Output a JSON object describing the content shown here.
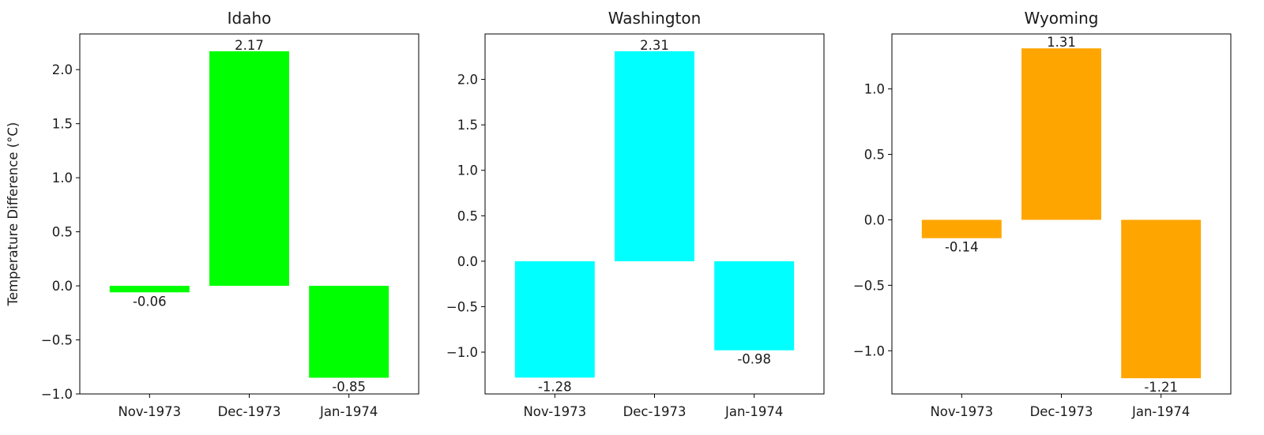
{
  "chart_data": [
    {
      "type": "bar",
      "title": "Idaho",
      "ylabel": "Temperature Difference (°C)",
      "categories": [
        "Nov-1973",
        "Dec-1973",
        "Jan-1974"
      ],
      "values": [
        -0.06,
        2.17,
        -0.85
      ],
      "value_labels": [
        "-0.06",
        "2.17",
        "-0.85"
      ],
      "color": "#00ff00",
      "ylim": [
        -1.0,
        2.33
      ],
      "yticks": [
        -1.0,
        -0.5,
        0.0,
        0.5,
        1.0,
        1.5,
        2.0
      ],
      "ytick_labels": [
        "−1.0",
        "−0.5",
        "0.0",
        "0.5",
        "1.0",
        "1.5",
        "2.0"
      ],
      "grid": false
    },
    {
      "type": "bar",
      "title": "Washington",
      "ylabel": "",
      "categories": [
        "Nov-1973",
        "Dec-1973",
        "Jan-1974"
      ],
      "values": [
        -1.28,
        2.31,
        -0.98
      ],
      "value_labels": [
        "-1.28",
        "2.31",
        "-0.98"
      ],
      "color": "#00ffff",
      "ylim": [
        -1.46,
        2.5
      ],
      "yticks": [
        -1.0,
        -0.5,
        0.0,
        0.5,
        1.0,
        1.5,
        2.0
      ],
      "ytick_labels": [
        "−1.0",
        "−0.5",
        "0.0",
        "0.5",
        "1.0",
        "1.5",
        "2.0"
      ],
      "grid": false
    },
    {
      "type": "bar",
      "title": "Wyoming",
      "ylabel": "",
      "categories": [
        "Nov-1973",
        "Dec-1973",
        "Jan-1974"
      ],
      "values": [
        -0.14,
        1.31,
        -1.21
      ],
      "value_labels": [
        "-0.14",
        "1.31",
        "-1.21"
      ],
      "color": "#ffa500",
      "ylim": [
        -1.33,
        1.42
      ],
      "yticks": [
        -1.0,
        -0.5,
        0.0,
        0.5,
        1.0
      ],
      "ytick_labels": [
        "−1.0",
        "−0.5",
        "0.0",
        "0.5",
        "1.0"
      ],
      "grid": false
    }
  ]
}
